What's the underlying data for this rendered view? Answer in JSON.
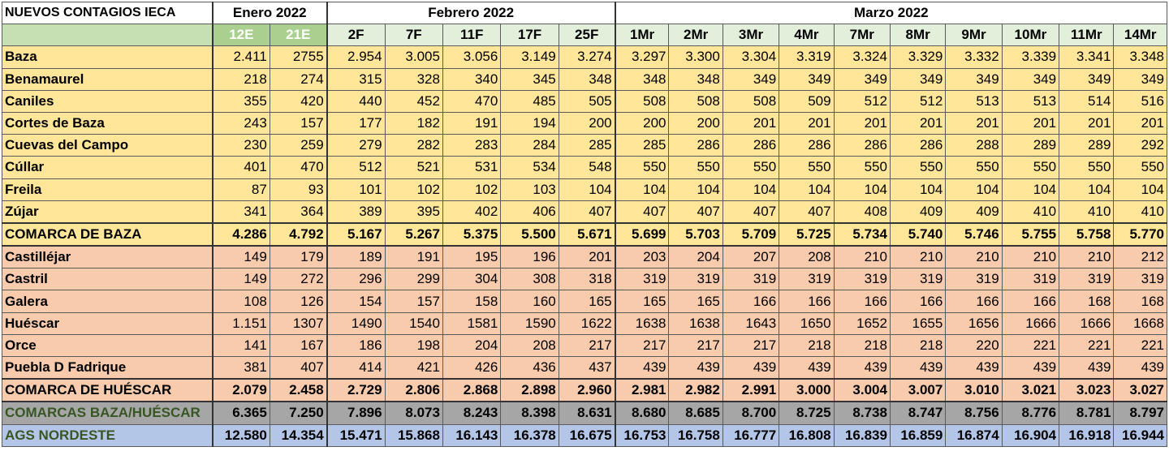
{
  "header": {
    "title": "NUEVOS CONTAGIOS IECA",
    "months": [
      "Enero 2022",
      "Febrero 2022",
      "Marzo 2022"
    ]
  },
  "dates": [
    "12E",
    "21E",
    "2F",
    "7F",
    "11F",
    "17F",
    "25F",
    "1Mr",
    "2Mr",
    "3Mr",
    "4Mr",
    "7Mr",
    "8Mr",
    "9Mr",
    "10Mr",
    "11Mr",
    "14Mr"
  ],
  "rows": [
    {
      "name": "Baza",
      "values": [
        "2.411",
        "2755",
        "2.954",
        "3.005",
        "3.056",
        "3.149",
        "3.274",
        "3.297",
        "3.300",
        "3.304",
        "3.319",
        "3.324",
        "3.329",
        "3.332",
        "3.339",
        "3.341",
        "3.348"
      ]
    },
    {
      "name": "Benamaurel",
      "values": [
        "218",
        "274",
        "315",
        "328",
        "340",
        "345",
        "348",
        "348",
        "348",
        "349",
        "349",
        "349",
        "349",
        "349",
        "349",
        "349",
        "349"
      ]
    },
    {
      "name": "Caniles",
      "values": [
        "355",
        "420",
        "440",
        "452",
        "470",
        "485",
        "505",
        "508",
        "508",
        "508",
        "509",
        "512",
        "512",
        "513",
        "513",
        "514",
        "516"
      ]
    },
    {
      "name": "Cortes de Baza",
      "values": [
        "243",
        "157",
        "177",
        "182",
        "191",
        "194",
        "200",
        "200",
        "200",
        "201",
        "201",
        "201",
        "201",
        "201",
        "201",
        "201",
        "201"
      ]
    },
    {
      "name": "Cuevas del Campo",
      "values": [
        "230",
        "259",
        "279",
        "282",
        "283",
        "284",
        "285",
        "285",
        "286",
        "286",
        "286",
        "286",
        "286",
        "288",
        "289",
        "289",
        "292"
      ]
    },
    {
      "name": "Cúllar",
      "values": [
        "401",
        "470",
        "512",
        "521",
        "531",
        "534",
        "548",
        "550",
        "550",
        "550",
        "550",
        "550",
        "550",
        "550",
        "550",
        "550",
        "550"
      ]
    },
    {
      "name": "Freila",
      "values": [
        "87",
        "93",
        "101",
        "102",
        "102",
        "103",
        "104",
        "104",
        "104",
        "104",
        "104",
        "104",
        "104",
        "104",
        "104",
        "104",
        "104"
      ]
    },
    {
      "name": "Zújar",
      "values": [
        "341",
        "364",
        "389",
        "395",
        "402",
        "406",
        "407",
        "407",
        "407",
        "407",
        "407",
        "408",
        "409",
        "409",
        "410",
        "410",
        "410"
      ]
    },
    {
      "name": "COMARCA DE BAZA",
      "values": [
        "4.286",
        "4.792",
        "5.167",
        "5.267",
        "5.375",
        "5.500",
        "5.671",
        "5.699",
        "5.703",
        "5.709",
        "5.725",
        "5.734",
        "5.740",
        "5.746",
        "5.755",
        "5.758",
        "5.770"
      ]
    },
    {
      "name": "Castilléjar",
      "values": [
        "149",
        "179",
        "189",
        "191",
        "195",
        "196",
        "201",
        "203",
        "204",
        "207",
        "208",
        "210",
        "210",
        "210",
        "210",
        "210",
        "212"
      ]
    },
    {
      "name": "Castril",
      "values": [
        "149",
        "272",
        "296",
        "299",
        "304",
        "308",
        "318",
        "319",
        "319",
        "319",
        "319",
        "319",
        "319",
        "319",
        "319",
        "319",
        "319"
      ]
    },
    {
      "name": "Galera",
      "values": [
        "108",
        "126",
        "154",
        "157",
        "158",
        "160",
        "165",
        "165",
        "165",
        "166",
        "166",
        "166",
        "166",
        "166",
        "166",
        "168",
        "168"
      ]
    },
    {
      "name": "Huéscar",
      "values": [
        "1.151",
        "1307",
        "1490",
        "1540",
        "1581",
        "1590",
        "1622",
        "1638",
        "1638",
        "1643",
        "1650",
        "1652",
        "1655",
        "1656",
        "1666",
        "1666",
        "1668"
      ]
    },
    {
      "name": "Orce",
      "values": [
        "141",
        "167",
        "186",
        "198",
        "204",
        "208",
        "217",
        "217",
        "217",
        "217",
        "218",
        "218",
        "218",
        "220",
        "221",
        "221",
        "221"
      ]
    },
    {
      "name": "Puebla D Fadrique",
      "values": [
        "381",
        "407",
        "414",
        "421",
        "426",
        "436",
        "437",
        "439",
        "439",
        "439",
        "439",
        "439",
        "439",
        "439",
        "439",
        "439",
        "439"
      ]
    },
    {
      "name": "COMARCA DE HUÉSCAR",
      "values": [
        "2.079",
        "2.458",
        "2.729",
        "2.806",
        "2.868",
        "2.898",
        "2.960",
        "2.981",
        "2.982",
        "2.991",
        "3.000",
        "3.004",
        "3.007",
        "3.010",
        "3.021",
        "3.023",
        "3.027"
      ]
    },
    {
      "name": "COMARCAS BAZA/HUÉSCAR",
      "values": [
        "6.365",
        "7.250",
        "7.896",
        "8.073",
        "8.243",
        "8.398",
        "8.631",
        "8.680",
        "8.685",
        "8.700",
        "8.725",
        "8.738",
        "8.747",
        "8.756",
        "8.776",
        "8.781",
        "8.797"
      ]
    },
    {
      "name": "AGS NORDESTE",
      "values": [
        "12.580",
        "14.354",
        "15.471",
        "15.868",
        "16.143",
        "16.378",
        "16.675",
        "16.753",
        "16.758",
        "16.777",
        "16.808",
        "16.839",
        "16.859",
        "16.874",
        "16.904",
        "16.918",
        "16.944"
      ]
    }
  ],
  "row_classes": [
    "baza",
    "baza",
    "baza",
    "baza",
    "baza",
    "baza",
    "baza",
    "baza",
    "baza total sep",
    "hues sep",
    "hues",
    "hues",
    "hues",
    "hues",
    "hues",
    "hues total sep",
    "combined sep",
    "ags"
  ],
  "colors": {
    "baza": "#ffe699",
    "huescar": "#f8cbad",
    "combined": "#a6a6a6",
    "ags": "#b4c6e7",
    "enero_header": "#a9d08e",
    "header_bar": "#e2efda"
  }
}
